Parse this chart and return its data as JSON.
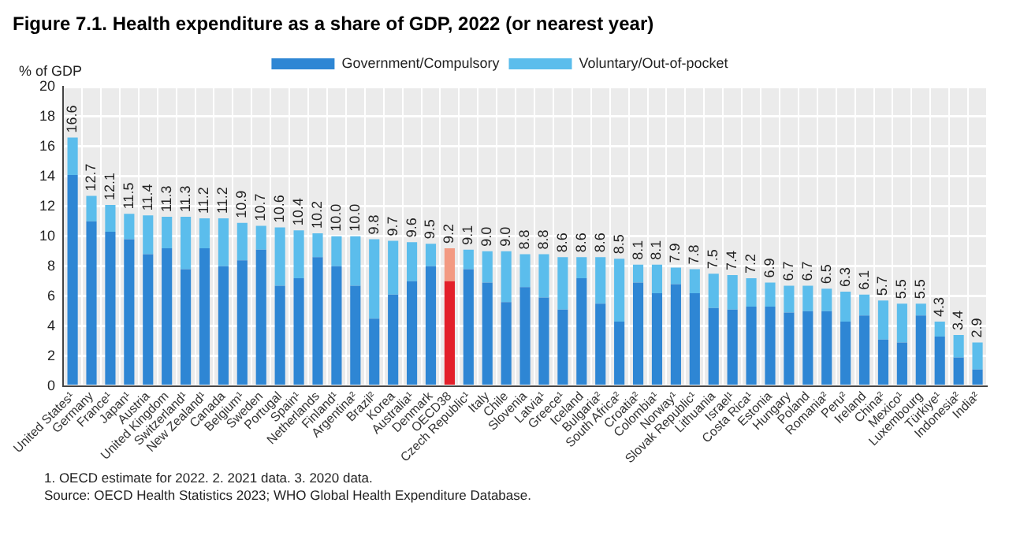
{
  "chart_data": {
    "type": "bar",
    "stacked": true,
    "title": "Figure 7.1. Health expenditure as a share of GDP, 2022 (or nearest year)",
    "ylabel": "% of GDP",
    "categories": [
      "United States¹",
      "Germany",
      "France¹",
      "Japan¹",
      "Austria",
      "United Kingdom",
      "Switzerland¹",
      "New Zealand¹",
      "Canada",
      "Belgium¹",
      "Sweden",
      "Portugal",
      "Spain¹",
      "Netherlands",
      "Finland¹",
      "Argentina²",
      "Brazil²",
      "Korea",
      "Australia¹",
      "Denmark",
      "OECD38",
      "Czech Republic¹",
      "Italy",
      "Chile",
      "Slovenia",
      "Latvia¹",
      "Greece¹",
      "Iceland",
      "Bulgaria²",
      "South Africa²",
      "Croatia²",
      "Colombia¹",
      "Norway¹",
      "Slovak Republic¹",
      "Lithuania",
      "Israel¹",
      "Costa Rica¹",
      "Estonia",
      "Hungary",
      "Poland",
      "Romania²",
      "Peru²",
      "Ireland",
      "China²",
      "Mexico¹",
      "Luxembourg",
      "Türkiye¹",
      "Indonesia²",
      "India²"
    ],
    "series": [
      {
        "name": "Government/Compulsory",
        "colors": [
          "#2e86d4",
          "#2e86d4",
          "#2e86d4",
          "#2e86d4",
          "#2e86d4",
          "#2e86d4",
          "#2e86d4",
          "#2e86d4",
          "#2e86d4",
          "#2e86d4",
          "#2e86d4",
          "#2e86d4",
          "#2e86d4",
          "#2e86d4",
          "#2e86d4",
          "#2e86d4",
          "#2e86d4",
          "#2e86d4",
          "#2e86d4",
          "#2e86d4",
          "#e3202a",
          "#2e86d4",
          "#2e86d4",
          "#2e86d4",
          "#2e86d4",
          "#2e86d4",
          "#2e86d4",
          "#2e86d4",
          "#2e86d4",
          "#2e86d4",
          "#2e86d4",
          "#2e86d4",
          "#2e86d4",
          "#2e86d4",
          "#2e86d4",
          "#2e86d4",
          "#2e86d4",
          "#2e86d4",
          "#2e86d4",
          "#2e86d4",
          "#2e86d4",
          "#2e86d4",
          "#2e86d4",
          "#2e86d4",
          "#2e86d4",
          "#2e86d4",
          "#2e86d4",
          "#2e86d4",
          "#2e86d4"
        ],
        "values": [
          14.1,
          11.0,
          10.3,
          9.8,
          8.8,
          9.2,
          7.8,
          9.2,
          8.0,
          8.4,
          9.1,
          6.7,
          7.2,
          8.6,
          8.0,
          6.7,
          4.5,
          6.1,
          7.0,
          8.0,
          7.0,
          7.8,
          6.9,
          5.6,
          6.6,
          5.9,
          5.1,
          7.2,
          5.5,
          4.3,
          6.9,
          6.2,
          6.8,
          6.2,
          5.2,
          5.1,
          5.3,
          5.3,
          4.9,
          5.0,
          5.0,
          4.3,
          4.7,
          3.1,
          2.9,
          4.7,
          3.3,
          1.9,
          1.1
        ]
      },
      {
        "name": "Voluntary/Out-of-pocket",
        "colors": [
          "#5bbdec",
          "#5bbdec",
          "#5bbdec",
          "#5bbdec",
          "#5bbdec",
          "#5bbdec",
          "#5bbdec",
          "#5bbdec",
          "#5bbdec",
          "#5bbdec",
          "#5bbdec",
          "#5bbdec",
          "#5bbdec",
          "#5bbdec",
          "#5bbdec",
          "#5bbdec",
          "#5bbdec",
          "#5bbdec",
          "#5bbdec",
          "#5bbdec",
          "#f39a82",
          "#5bbdec",
          "#5bbdec",
          "#5bbdec",
          "#5bbdec",
          "#5bbdec",
          "#5bbdec",
          "#5bbdec",
          "#5bbdec",
          "#5bbdec",
          "#5bbdec",
          "#5bbdec",
          "#5bbdec",
          "#5bbdec",
          "#5bbdec",
          "#5bbdec",
          "#5bbdec",
          "#5bbdec",
          "#5bbdec",
          "#5bbdec",
          "#5bbdec",
          "#5bbdec",
          "#5bbdec",
          "#5bbdec",
          "#5bbdec",
          "#5bbdec",
          "#5bbdec",
          "#5bbdec",
          "#5bbdec"
        ],
        "values": [
          2.5,
          1.7,
          1.8,
          1.7,
          2.6,
          2.1,
          3.5,
          2.0,
          3.2,
          2.5,
          1.6,
          3.9,
          3.2,
          1.6,
          2.0,
          3.3,
          5.3,
          3.6,
          2.6,
          1.5,
          2.2,
          1.3,
          2.1,
          3.4,
          2.2,
          2.9,
          3.5,
          1.4,
          3.1,
          4.2,
          1.2,
          1.9,
          1.1,
          1.6,
          2.3,
          2.3,
          1.9,
          1.6,
          1.8,
          1.7,
          1.5,
          2.0,
          1.4,
          2.6,
          2.6,
          0.8,
          1.0,
          1.5,
          1.8
        ]
      }
    ],
    "totals": [
      "16.6",
      "12.7",
      "12.1",
      "11.5",
      "11.4",
      "11.3",
      "11.3",
      "11.2",
      "11.2",
      "10.9",
      "10.7",
      "10.6",
      "10.4",
      "10.2",
      "10.0",
      "10.0",
      "9.8",
      "9.7",
      "9.6",
      "9.5",
      "9.2",
      "9.1",
      "9.0",
      "9.0",
      "8.8",
      "8.8",
      "8.6",
      "8.6",
      "8.6",
      "8.5",
      "8.1",
      "8.1",
      "7.9",
      "7.8",
      "7.5",
      "7.4",
      "7.2",
      "6.9",
      "6.7",
      "6.7",
      "6.5",
      "6.3",
      "6.1",
      "5.7",
      "5.5",
      "5.5",
      "4.3",
      "3.4",
      "2.9"
    ],
    "ylim": [
      0,
      20
    ],
    "yticks": [
      0,
      2,
      4,
      6,
      8,
      10,
      12,
      14,
      16,
      18,
      20
    ],
    "grid": true,
    "legend": "top",
    "annotations": [
      "1. OECD estimate for 2022. 2. 2021 data. 3. 2020 data.",
      "Source: OECD Health Statistics 2023; WHO Global Health Expenditure Database."
    ]
  }
}
